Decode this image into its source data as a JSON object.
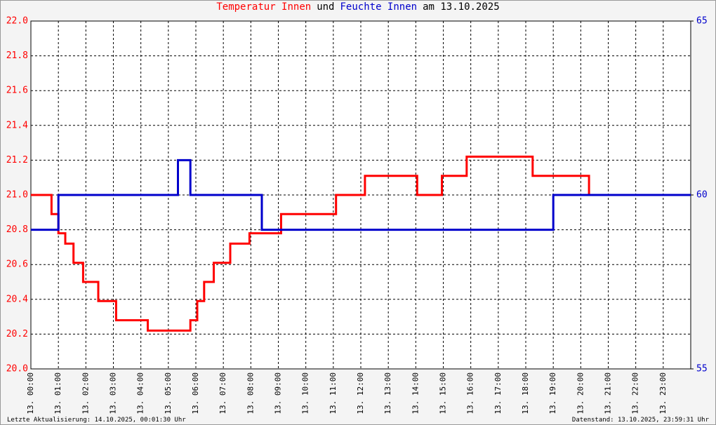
{
  "chart_data": {
    "type": "line",
    "title_parts": [
      {
        "text": "Temperatur Innen",
        "color": "#ff0000"
      },
      {
        "text": "und",
        "color": "#000000"
      },
      {
        "text": "Feuchte Innen",
        "color": "#0000cc"
      },
      {
        "text": "am 13.10.2025",
        "color": "#000000"
      }
    ],
    "footer_left": "Letzte Aktualisierung: 14.10.2025, 00:01:30 Uhr",
    "footer_right": "Datenstand: 13.10.2025, 23:59:31 Uhr",
    "xlim": [
      0,
      24
    ],
    "xticks": [
      {
        "value": 0,
        "label": "13. 00:00"
      },
      {
        "value": 1,
        "label": "13. 01:00"
      },
      {
        "value": 2,
        "label": "13. 02:00"
      },
      {
        "value": 3,
        "label": "13. 03:00"
      },
      {
        "value": 4,
        "label": "13. 04:00"
      },
      {
        "value": 5,
        "label": "13. 05:00"
      },
      {
        "value": 6,
        "label": "13. 06:00"
      },
      {
        "value": 7,
        "label": "13. 07:00"
      },
      {
        "value": 8,
        "label": "13. 08:00"
      },
      {
        "value": 9,
        "label": "13. 09:00"
      },
      {
        "value": 10,
        "label": "13. 10:00"
      },
      {
        "value": 11,
        "label": "13. 11:00"
      },
      {
        "value": 12,
        "label": "13. 12:00"
      },
      {
        "value": 13,
        "label": "13. 13:00"
      },
      {
        "value": 14,
        "label": "13. 14:00"
      },
      {
        "value": 15,
        "label": "13. 15:00"
      },
      {
        "value": 16,
        "label": "13. 16:00"
      },
      {
        "value": 17,
        "label": "13. 17:00"
      },
      {
        "value": 18,
        "label": "13. 18:00"
      },
      {
        "value": 19,
        "label": "13. 19:00"
      },
      {
        "value": 20,
        "label": "13. 20:00"
      },
      {
        "value": 21,
        "label": "13. 21:00"
      },
      {
        "value": 22,
        "label": "13. 22:00"
      },
      {
        "value": 23,
        "label": "13. 23:00"
      }
    ],
    "ylim": [
      20.0,
      22.0
    ],
    "yticks": [
      {
        "value": 20.0,
        "label": "20.0"
      },
      20.2,
      20.4,
      20.6,
      20.8,
      {
        "value": 21.0,
        "label": "21.0"
      },
      21.2,
      21.4,
      21.6,
      21.8,
      {
        "value": 22.0,
        "label": "22.0"
      }
    ],
    "y2lim": [
      55,
      65
    ],
    "y2ticks": [
      55,
      60,
      65
    ],
    "grid": true,
    "series": [
      {
        "name": "Temperatur Innen",
        "color": "#ff0000",
        "x": [
          0,
          0.75,
          0.75,
          1.0,
          1.0,
          1.25,
          1.25,
          1.55,
          1.55,
          1.9,
          1.9,
          2.45,
          2.45,
          3.1,
          3.1,
          4.25,
          4.25,
          5.8,
          5.8,
          6.05,
          6.05,
          6.3,
          6.3,
          6.65,
          6.65,
          7.25,
          7.25,
          7.95,
          7.95,
          9.1,
          9.1,
          11.1,
          11.1,
          12.15,
          12.15,
          14.05,
          14.05,
          14.95,
          14.95,
          15.85,
          15.85,
          18.25,
          18.25,
          20.3,
          20.3,
          24
        ],
        "values": [
          21.0,
          21.0,
          20.89,
          20.89,
          20.78,
          20.78,
          20.72,
          20.72,
          20.61,
          20.61,
          20.5,
          20.5,
          20.39,
          20.39,
          20.28,
          20.28,
          20.22,
          20.22,
          20.28,
          20.28,
          20.39,
          20.39,
          20.5,
          20.5,
          20.61,
          20.61,
          20.72,
          20.72,
          20.78,
          20.78,
          20.89,
          20.89,
          21.0,
          21.0,
          21.11,
          21.11,
          21.0,
          21.0,
          21.11,
          21.11,
          21.22,
          21.22,
          21.11,
          21.11,
          21.0,
          21.0
        ]
      },
      {
        "name": "Feuchte Innen",
        "color": "#0000cc",
        "axis": "y2",
        "x": [
          0,
          1.0,
          1.0,
          5.35,
          5.35,
          5.8,
          5.8,
          8.4,
          8.4,
          19.0,
          19.0,
          24
        ],
        "values": [
          59,
          59,
          60,
          60,
          61,
          61,
          60,
          60,
          59,
          59,
          60,
          60
        ]
      }
    ]
  }
}
